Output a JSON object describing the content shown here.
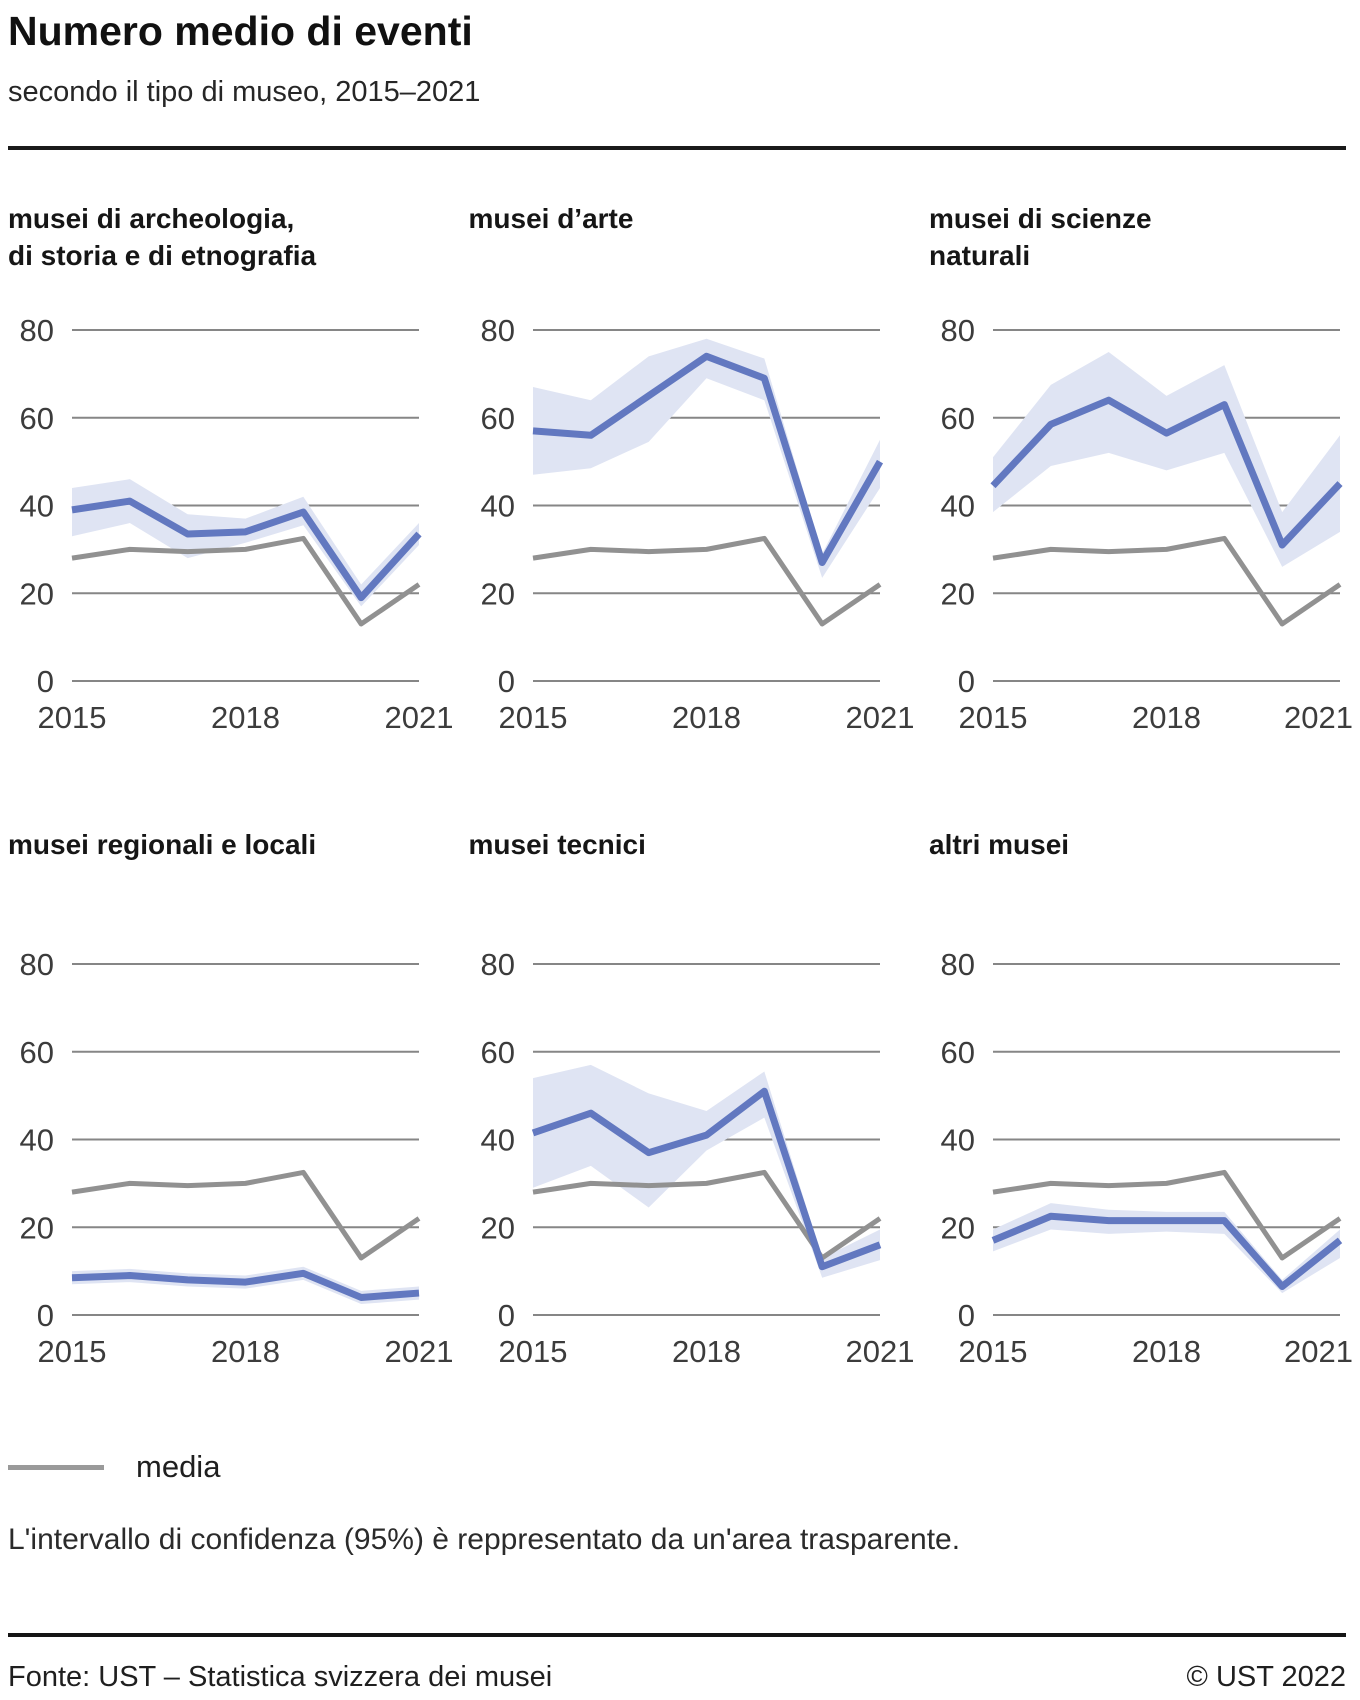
{
  "header": {
    "title": "Numero medio di eventi",
    "subtitle": "secondo il tipo di museo, 2015–2021"
  },
  "legend": {
    "media_label": "media"
  },
  "note": "L'intervallo di confidenza (95%) è reppresentato da un'area trasparente.",
  "footer": {
    "source": "Fonte: UST – Statistica svizzera dei musei",
    "copyright": "© UST 2022"
  },
  "colors": {
    "series_line": "#6278c0",
    "confidence_band": "#dfe4f3",
    "media_line": "#919191",
    "legend_swatch": "#9a9a9a",
    "gridline": "#868686",
    "tick_text": "#3c3c3c",
    "rule": "#1a1a1a"
  },
  "chart_data": [
    {
      "type": "line",
      "title": "musei di archeologia, di storia e di etnografia",
      "title_lines": [
        "musei di archeologia,",
        "di storia e di etnografia"
      ],
      "x": [
        2015,
        2016,
        2017,
        2018,
        2019,
        2020,
        2021
      ],
      "x_tick_labels": [
        "2015",
        "2018",
        "2021"
      ],
      "y_ticks": [
        0,
        20,
        40,
        60,
        80
      ],
      "ylim": [
        0,
        80
      ],
      "series": [
        {
          "name": "numero medio di eventi",
          "values": [
            39,
            41,
            33.5,
            34,
            38.5,
            19,
            33.5
          ]
        },
        {
          "name": "media",
          "values": [
            28,
            30,
            29.5,
            30,
            32.5,
            13,
            22
          ]
        }
      ],
      "confidence_band_95": {
        "upper": [
          44,
          46,
          38,
          37,
          42,
          22,
          36
        ],
        "lower": [
          33,
          36,
          28,
          31.5,
          35.5,
          17,
          31
        ]
      }
    },
    {
      "type": "line",
      "title": "musei d’arte",
      "title_lines": [
        "musei d’arte"
      ],
      "x": [
        2015,
        2016,
        2017,
        2018,
        2019,
        2020,
        2021
      ],
      "x_tick_labels": [
        "2015",
        "2018",
        "2021"
      ],
      "y_ticks": [
        0,
        20,
        40,
        60,
        80
      ],
      "ylim": [
        0,
        80
      ],
      "series": [
        {
          "name": "numero medio di eventi",
          "values": [
            57,
            56,
            65,
            74,
            69,
            27,
            50
          ]
        },
        {
          "name": "media",
          "values": [
            28,
            30,
            29.5,
            30,
            32.5,
            13,
            22
          ]
        }
      ],
      "confidence_band_95": {
        "upper": [
          67,
          64,
          74,
          78,
          73.5,
          29,
          55
        ],
        "lower": [
          47,
          48.5,
          54.5,
          69,
          64,
          23.5,
          44
        ]
      }
    },
    {
      "type": "line",
      "title": "musei di scienze naturali",
      "title_lines": [
        "musei di scienze",
        "naturali"
      ],
      "x": [
        2015,
        2016,
        2017,
        2018,
        2019,
        2020,
        2021
      ],
      "x_tick_labels": [
        "2015",
        "2018",
        "2021"
      ],
      "y_ticks": [
        0,
        20,
        40,
        60,
        80
      ],
      "ylim": [
        0,
        80
      ],
      "series": [
        {
          "name": "numero medio di eventi",
          "values": [
            44.5,
            58.5,
            64,
            56.5,
            63,
            31,
            45
          ]
        },
        {
          "name": "media",
          "values": [
            28,
            30,
            29.5,
            30,
            32.5,
            13,
            22
          ]
        }
      ],
      "confidence_band_95": {
        "upper": [
          51,
          67.5,
          75,
          65,
          72,
          38.5,
          56
        ],
        "lower": [
          38.5,
          49,
          52,
          48,
          52,
          26,
          34
        ]
      }
    },
    {
      "type": "line",
      "title": "musei regionali e locali",
      "title_lines": [
        "musei regionali e locali"
      ],
      "x": [
        2015,
        2016,
        2017,
        2018,
        2019,
        2020,
        2021
      ],
      "x_tick_labels": [
        "2015",
        "2018",
        "2021"
      ],
      "y_ticks": [
        0,
        20,
        40,
        60,
        80
      ],
      "ylim": [
        0,
        80
      ],
      "series": [
        {
          "name": "numero medio di eventi",
          "values": [
            8.5,
            9,
            8,
            7.5,
            9.5,
            4,
            5
          ]
        },
        {
          "name": "media",
          "values": [
            28,
            30,
            29.5,
            30,
            32.5,
            13,
            22
          ]
        }
      ],
      "confidence_band_95": {
        "upper": [
          10,
          10.5,
          9.5,
          9,
          11,
          5.5,
          6.5
        ],
        "lower": [
          7,
          7.5,
          6.5,
          6,
          8,
          2.5,
          3.5
        ]
      }
    },
    {
      "type": "line",
      "title": "musei tecnici",
      "title_lines": [
        "musei tecnici"
      ],
      "x": [
        2015,
        2016,
        2017,
        2018,
        2019,
        2020,
        2021
      ],
      "x_tick_labels": [
        "2015",
        "2018",
        "2021"
      ],
      "y_ticks": [
        0,
        20,
        40,
        60,
        80
      ],
      "ylim": [
        0,
        80
      ],
      "series": [
        {
          "name": "numero medio di eventi",
          "values": [
            41.5,
            46,
            37,
            41,
            51,
            11,
            16
          ]
        },
        {
          "name": "media",
          "values": [
            28,
            30,
            29.5,
            30,
            32.5,
            13,
            22
          ]
        }
      ],
      "confidence_band_95": {
        "upper": [
          54,
          57,
          50.5,
          46.5,
          55.5,
          13,
          19.5
        ],
        "lower": [
          29,
          34,
          24.5,
          37.5,
          45,
          8.5,
          12.5
        ]
      }
    },
    {
      "type": "line",
      "title": "altri musei",
      "title_lines": [
        "altri musei"
      ],
      "x": [
        2015,
        2016,
        2017,
        2018,
        2019,
        2020,
        2021
      ],
      "x_tick_labels": [
        "2015",
        "2018",
        "2021"
      ],
      "y_ticks": [
        0,
        20,
        40,
        60,
        80
      ],
      "ylim": [
        0,
        80
      ],
      "series": [
        {
          "name": "numero medio di eventi",
          "values": [
            17,
            22.5,
            21.5,
            21.5,
            21.5,
            6.5,
            17
          ]
        },
        {
          "name": "media",
          "values": [
            28,
            30,
            29.5,
            30,
            32.5,
            13,
            22
          ]
        }
      ],
      "confidence_band_95": {
        "upper": [
          19.5,
          25.5,
          24,
          23.5,
          23.5,
          8,
          19.5
        ],
        "lower": [
          14.5,
          19.5,
          18.5,
          19,
          18.5,
          5,
          13
        ]
      }
    }
  ]
}
